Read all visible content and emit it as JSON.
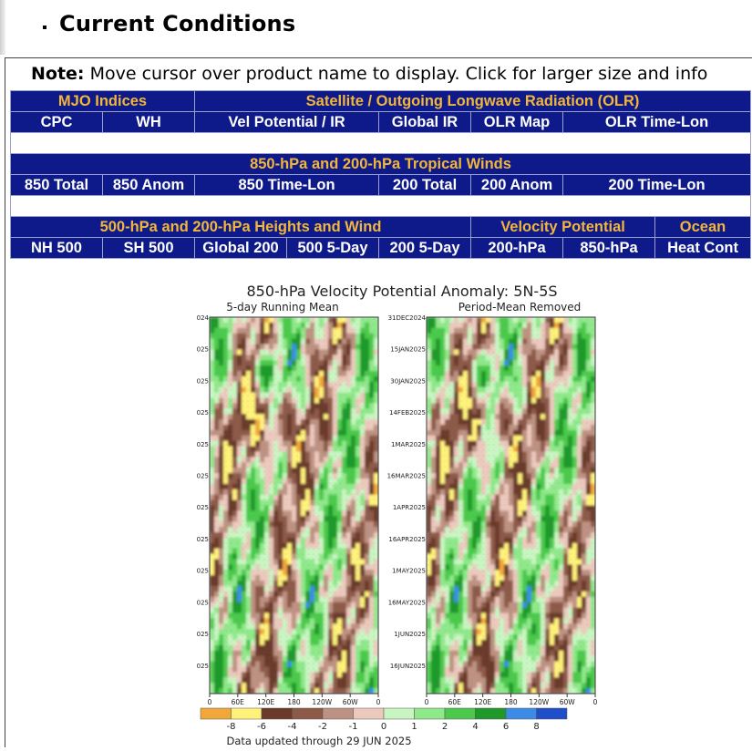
{
  "section": {
    "title": "Current Conditions"
  },
  "note": {
    "label": "Note:",
    "text": "Move cursor over product name to display. Click for larger size and info"
  },
  "nav": {
    "mjo_header": "MJO Indices",
    "sat_header": "Satellite / Outgoing Longwave Radiation (OLR)",
    "row1": [
      "CPC",
      "WH",
      "Vel Potential / IR",
      "Global IR",
      "OLR Map",
      "OLR Time-Lon"
    ],
    "winds_header": "850-hPa and 200-hPa Tropical Winds",
    "row2": [
      "850 Total",
      "850 Anom",
      "850 Time-Lon",
      "200 Total",
      "200 Anom",
      "200 Time-Lon"
    ],
    "heights_header": "500-hPa and 200-hPa Heights and Wind",
    "vp_header": "Velocity Potential",
    "ocean_header": "Ocean",
    "row3": [
      "NH 500",
      "SH 500",
      "Global 200",
      "500 5-Day",
      "200 5-Day",
      "200-hPa",
      "850-hPa",
      "Heat Cont"
    ]
  },
  "figure": {
    "title": "850-hPa Velocity Potential Anomaly: 5N-5S",
    "left_subtitle": "5-day Running Mean",
    "right_subtitle": "Period-Mean Removed",
    "dates": [
      "31DEC2024",
      "15JAN2025",
      "30JAN2025",
      "14FEB2025",
      "1MAR2025",
      "16MAR2025",
      "1APR2025",
      "16APR2025",
      "1MAY2025",
      "16MAY2025",
      "1JUN2025",
      "16JUN2025"
    ],
    "lon_labels": [
      "0",
      "60E",
      "120E",
      "180",
      "120W",
      "60W",
      "0"
    ],
    "colorbar_labels": [
      "-8",
      "-6",
      "-4",
      "-2",
      "-1",
      "0",
      "1",
      "2",
      "4",
      "6",
      "8"
    ],
    "colorbar_colors": [
      "#f2a73a",
      "#fff27a",
      "#6b3a2a",
      "#8d5a48",
      "#bd9282",
      "#ecc9bd",
      "#c9f5c2",
      "#8fe88a",
      "#4cc94c",
      "#1f9a2a",
      "#3c8ce6",
      "#1f4fc8"
    ],
    "footer": "Data updated through 29 JUN 2025"
  }
}
